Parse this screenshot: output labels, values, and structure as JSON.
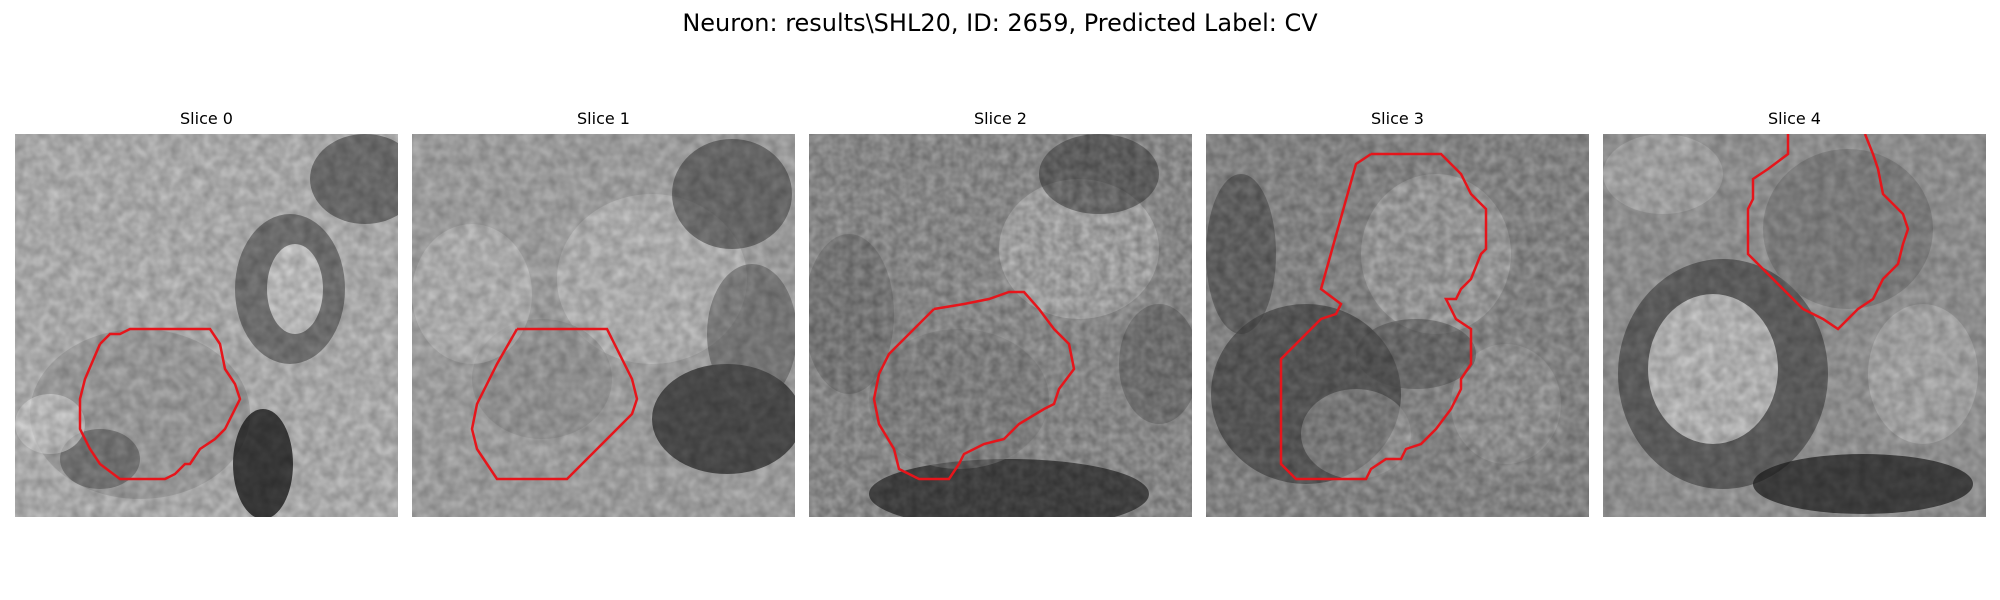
{
  "figure": {
    "title": "Neuron: results\\SHL20, ID: 2659, Predicted Label: CV"
  },
  "panels": [
    {
      "title": "Slice 0"
    },
    {
      "title": "Slice 1"
    },
    {
      "title": "Slice 2"
    },
    {
      "title": "Slice 3"
    },
    {
      "title": "Slice 4"
    }
  ],
  "colors": {
    "contour": "#e6151b",
    "background": "#ffffff"
  }
}
